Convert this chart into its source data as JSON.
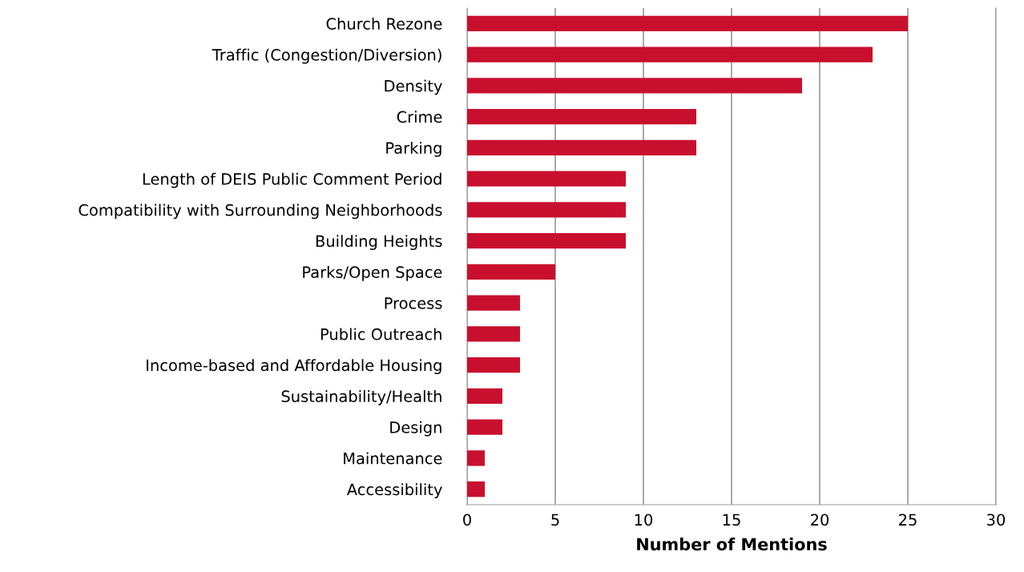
{
  "chart_data": {
    "type": "bar",
    "orientation": "horizontal",
    "xlabel": "Number of Mentions",
    "categories": [
      "Church Rezone",
      "Traffic (Congestion/Diversion)",
      "Density",
      "Crime",
      "Parking",
      "Length of DEIS Public Comment Period",
      "Compatibility with Surrounding Neighborhoods",
      "Building Heights",
      "Parks/Open Space",
      "Process",
      "Public Outreach",
      "Income-based and Affordable Housing",
      "Sustainability/Health",
      "Design",
      "Maintenance",
      "Accessibility"
    ],
    "values": [
      25,
      23,
      19,
      13,
      13,
      9,
      9,
      9,
      5,
      3,
      3,
      3,
      2,
      2,
      1,
      1
    ],
    "color": "#c8102e",
    "xlim": [
      0,
      30
    ],
    "xticks": [
      0,
      5,
      10,
      15,
      20,
      25,
      30
    ],
    "grid": "x"
  }
}
